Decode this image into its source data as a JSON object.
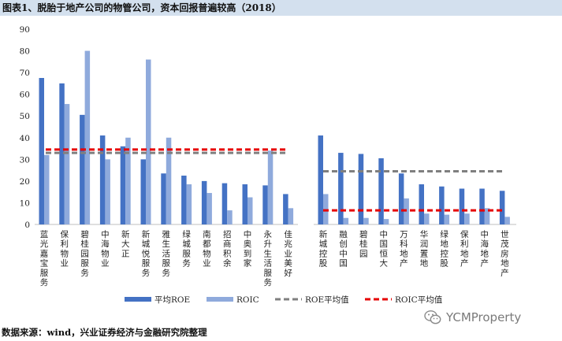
{
  "title": "图表1、脱胎于地产公司的物管公司，资本回报普遍较高（2018）",
  "source": "数据来源：wind，兴业证券经济与金融研究院整理",
  "watermark": "YCMProperty",
  "colors": {
    "roe": "#4472c4",
    "roic": "#8faadc",
    "roe_avg": "#7f7f7f",
    "roic_avg": "#e60000",
    "title_bg": "#d3e0ee"
  },
  "chart_data": {
    "type": "bar",
    "title": "脱胎于地产公司的物管公司，资本回报普遍较高（2018）",
    "ylim": [
      0,
      90
    ],
    "yticks": [
      0,
      10,
      20,
      30,
      40,
      50,
      60,
      70,
      80,
      90
    ],
    "groups": [
      {
        "categories": [
          "蓝光嘉宝服务",
          "保利物业",
          "碧桂园服务",
          "中海物业",
          "新大正",
          "新城悦服务",
          "雅生活服务",
          "绿城服务",
          "南都物业",
          "招商积余",
          "中奥到家",
          "永升生活服务",
          "佳兆业美好"
        ],
        "series": [
          {
            "name": "平均ROE",
            "values": [
              67.5,
              65,
              50.5,
              41,
              36,
              30,
              23.5,
              22.5,
              20,
              19,
              18.5,
              18,
              14
            ]
          },
          {
            "name": "ROIC",
            "values": [
              32,
              55.5,
              80,
              30,
              40,
              76,
              40,
              18.5,
              14.5,
              6.5,
              12.5,
              34,
              7.5
            ]
          }
        ],
        "roe_avg": 33,
        "roic_avg": 34.5
      },
      {
        "categories": [
          "新城控股",
          "融创中国",
          "碧桂园",
          "中国恒大",
          "万科地产",
          "华润置地",
          "绿地控股",
          "保利地产",
          "中海地产",
          "世茂房地产"
        ],
        "series": [
          {
            "name": "平均ROE",
            "values": [
              41,
              33,
              32.5,
              30.5,
              23.5,
              18.5,
              17.5,
              16.5,
              16.5,
              15.5
            ]
          },
          {
            "name": "ROIC",
            "values": [
              14,
              3,
              3,
              2.5,
              12,
              5,
              4.5,
              5,
              7.5,
              3.5
            ]
          }
        ],
        "roe_avg": 24.5,
        "roic_avg": 6.5
      }
    ],
    "legend": [
      "平均ROE",
      "ROIC",
      "ROE平均值",
      "ROIC平均值"
    ],
    "legend_position": "bottom"
  }
}
